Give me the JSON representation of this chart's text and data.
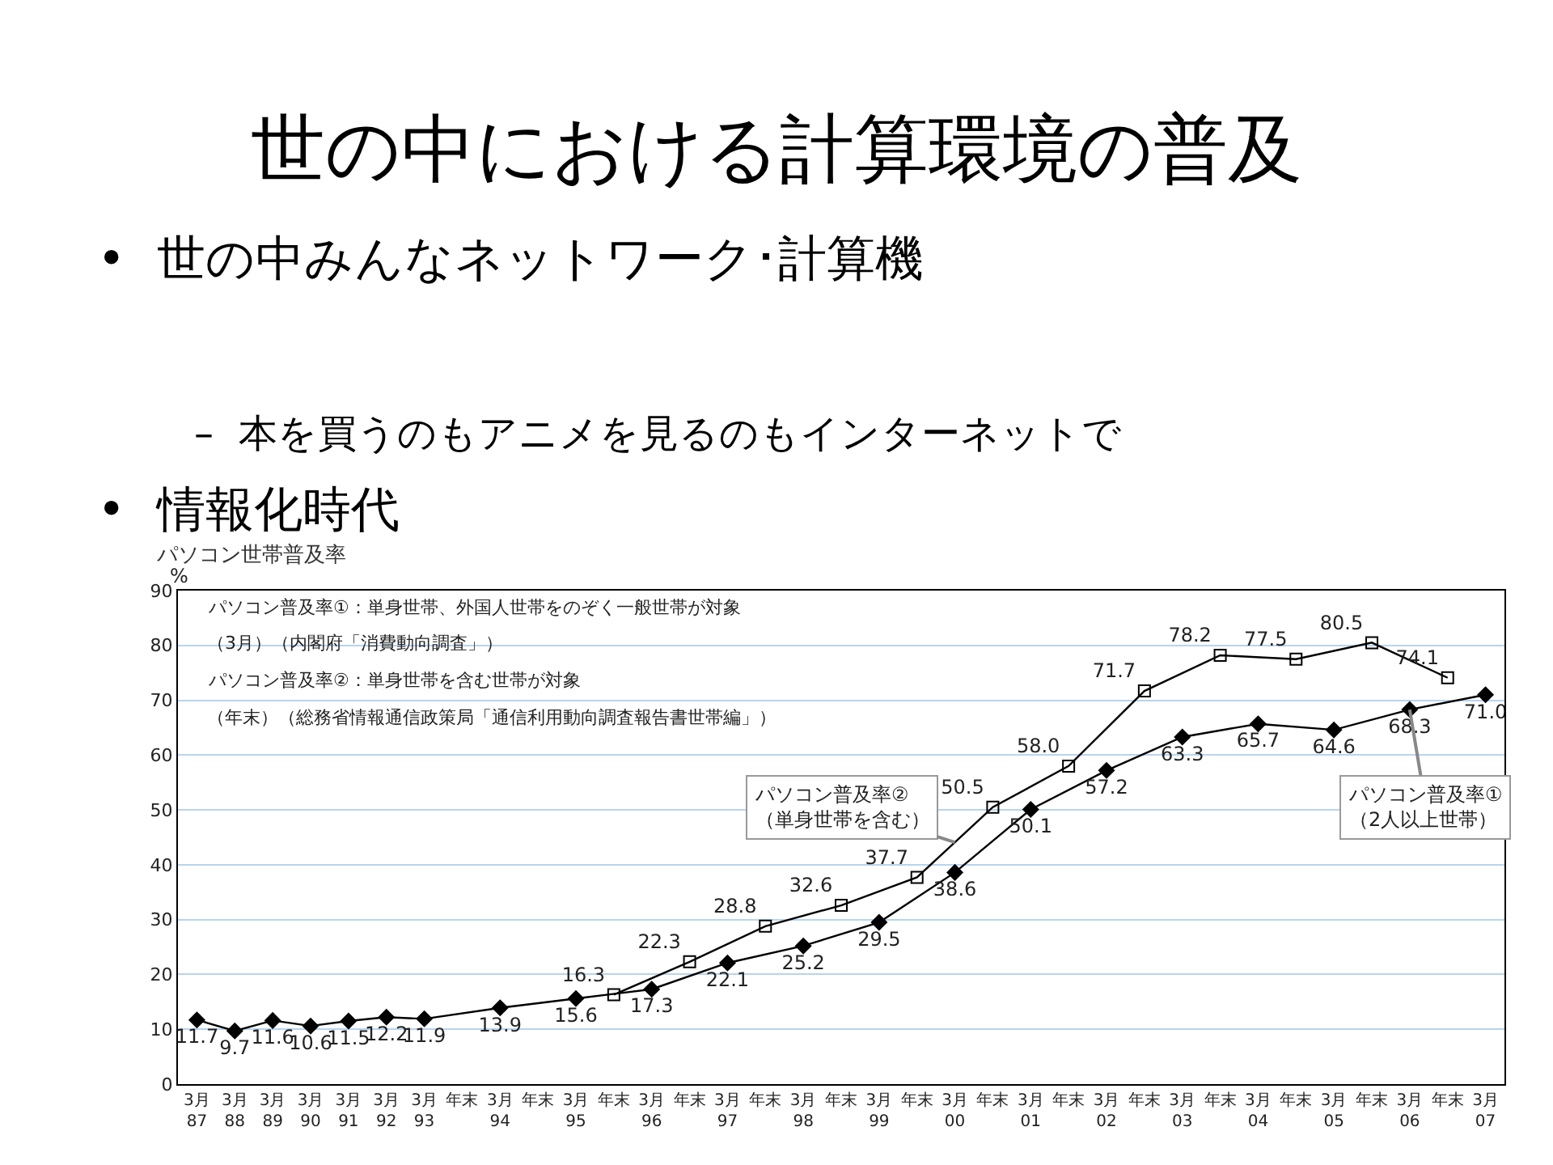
{
  "chart_data": {
    "type": "line",
    "title": "世の中における計算環境の普及",
    "subtitle": "パソコン世帯普及率",
    "annotations": [
      "•  世の中みんなネットワーク･計算機",
      "–  本を買うのもアニメを見るのもインターネットで",
      "•  情報化時代",
      "パソコン普及率①：単身世帯、外国人世帯をのぞく一般世帯が対象",
      "（3月）（内閣府「消費動向調査」）",
      "パソコン普及率②：単身世帯を含む世帯が対象",
      "（年末）（総務省情報通信政策局「通信利用動向調査報告書世帯編」）"
    ],
    "ylabel": "%",
    "categories": [
      "3月 87",
      "3月 88",
      "3月 89",
      "3月 90",
      "3月 91",
      "3月 92",
      "3月 93",
      "年末",
      "3月 94",
      "年末",
      "3月 95",
      "年末",
      "3月 96",
      "年末",
      "3月 97",
      "年末",
      "3月 98",
      "年末",
      "3月 99",
      "年末",
      "3月 00",
      "年末",
      "3月 01",
      "年末",
      "3月 02",
      "年末",
      "3月 03",
      "年末",
      "3月 04",
      "年末",
      "3月 05",
      "年末",
      "3月 06",
      "年末",
      "3月 07"
    ],
    "series": [
      {
        "name": "パソコン普及率①\n（2人以上世帯）",
        "color": "#000000",
        "marker": "diamond",
        "values": [
          11.7,
          9.7,
          11.6,
          10.6,
          11.5,
          12.2,
          11.9,
          null,
          13.9,
          null,
          15.6,
          null,
          17.3,
          null,
          22.1,
          null,
          25.2,
          null,
          29.5,
          null,
          38.6,
          null,
          50.1,
          null,
          57.2,
          null,
          63.3,
          null,
          65.7,
          null,
          64.6,
          null,
          68.3,
          null,
          71.0
        ],
        "value_labels": [
          "11.7",
          "9.7",
          "11.6",
          "10.6",
          "11.5",
          "12.2",
          "11.9",
          null,
          "13.9",
          null,
          "15.6",
          null,
          "17.3",
          null,
          "22.1",
          null,
          "25.2",
          null,
          "29.5",
          null,
          "38.6",
          null,
          "50.1",
          null,
          "57.2",
          null,
          "63.3",
          null,
          "65.7",
          null,
          "64.6",
          null,
          "68.3",
          null,
          "71.0"
        ]
      },
      {
        "name": "パソコン普及率②\n（単身世帯を含む）",
        "color": "#000000",
        "marker": "square",
        "values": [
          null,
          null,
          null,
          null,
          null,
          null,
          null,
          null,
          null,
          null,
          null,
          16.3,
          null,
          22.3,
          null,
          28.8,
          null,
          32.6,
          null,
          37.7,
          null,
          50.5,
          null,
          58.0,
          null,
          71.7,
          null,
          78.2,
          null,
          77.5,
          null,
          80.5,
          null,
          74.1,
          null
        ],
        "value_labels": [
          null,
          null,
          null,
          null,
          null,
          null,
          null,
          null,
          null,
          null,
          null,
          "16.3",
          null,
          "22.3",
          null,
          "28.8",
          null,
          "32.6",
          null,
          "37.7",
          null,
          "50.5",
          null,
          "58.0",
          null,
          "71.7",
          null,
          "78.2",
          null,
          "77.5",
          null,
          "80.5",
          null,
          "74.1",
          null
        ]
      }
    ],
    "ylim": [
      0,
      90
    ],
    "yticks": [
      0,
      10,
      20,
      30,
      40,
      50,
      60,
      70,
      80,
      90
    ],
    "grid": "y",
    "legend": false
  }
}
